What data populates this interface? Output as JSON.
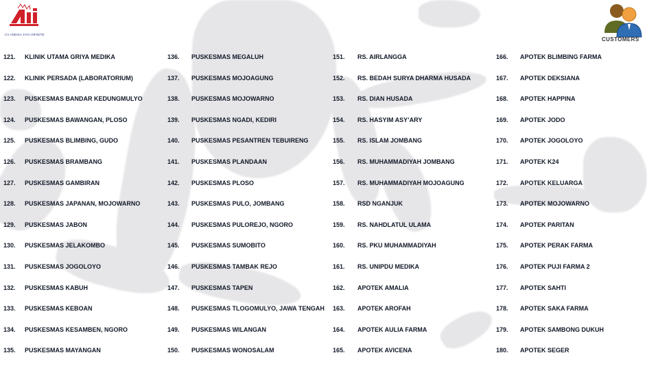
{
  "logo": {
    "brand": "AJI",
    "company": "CV ANDIKA JAYA INFINITE"
  },
  "header": {
    "customers_label": "CUSTOMERS",
    "icon": "customers-icon"
  },
  "columns": [
    {
      "items": [
        {
          "no": "121.",
          "name": "KLINIK UTAMA GRIYA MEDIKA"
        },
        {
          "no": "122.",
          "name": "KLINIK PERSADA (LABORATORIUM)"
        },
        {
          "no": "123.",
          "name": "PUSKESMAS BANDAR KEDUNGMULYO"
        },
        {
          "no": "124.",
          "name": "PUSKESMAS BAWANGAN, PLOSO"
        },
        {
          "no": "125.",
          "name": "PUSKESMAS BLIMBING, GUDO"
        },
        {
          "no": "126.",
          "name": "PUSKESMAS BRAMBANG"
        },
        {
          "no": "127.",
          "name": "PUSKESMAS GAMBIRAN"
        },
        {
          "no": "128.",
          "name": "PUSKESMAS JAPANAN, MOJOWARNO"
        },
        {
          "no": "129.",
          "name": "PUSKESMAS JABON"
        },
        {
          "no": "130.",
          "name": "PUSKESMAS JELAKOMBO"
        },
        {
          "no": "131.",
          "name": "PUSKESMAS JOGOLOYO"
        },
        {
          "no": "132.",
          "name": "PUSKESMAS KABUH"
        },
        {
          "no": "133.",
          "name": "PUSKESMAS KEBOAN"
        },
        {
          "no": "134.",
          "name": "PUSKESMAS KESAMBEN, NGORO"
        },
        {
          "no": "135.",
          "name": "PUSKESMAS MAYANGAN"
        }
      ]
    },
    {
      "items": [
        {
          "no": "136.",
          "name": "PUSKESMAS MEGALUH"
        },
        {
          "no": "137.",
          "name": "PUSKESMAS MOJOAGUNG"
        },
        {
          "no": "138.",
          "name": "PUSKESMAS MOJOWARNO"
        },
        {
          "no": "139.",
          "name": "PUSKESMAS NGADI, KEDIRI"
        },
        {
          "no": "140.",
          "name": "PUSKESMAS PESANTREN TEBUIRENG"
        },
        {
          "no": "141.",
          "name": "PUSKESMAS PLANDAAN"
        },
        {
          "no": "142.",
          "name": "PUSKESMAS PLOSO"
        },
        {
          "no": "143.",
          "name": "PUSKESMAS PULO, JOMBANG"
        },
        {
          "no": "144.",
          "name": "PUSKESMAS PULOREJO, NGORO"
        },
        {
          "no": "145.",
          "name": "PUSKESMAS SUMOBITO"
        },
        {
          "no": "146.",
          "name": "PUSKESMAS TAMBAK REJO"
        },
        {
          "no": "147.",
          "name": "PUSKESMAS TAPEN"
        },
        {
          "no": "148.",
          "name": "PUSKESMAS TLOGOMULYO, JAWA TENGAH"
        },
        {
          "no": "149.",
          "name": "PUSKESMAS WILANGAN"
        },
        {
          "no": "150.",
          "name": "PUSKESMAS WONOSALAM"
        }
      ]
    },
    {
      "items": [
        {
          "no": "151.",
          "name": "RS. AIRLANGGA"
        },
        {
          "no": "152.",
          "name": "RS. BEDAH SURYA DHARMA HUSADA"
        },
        {
          "no": "153.",
          "name": "RS. DIAN HUSADA"
        },
        {
          "no": "154.",
          "name": "RS. HASYIM ASY’ARY"
        },
        {
          "no": "155.",
          "name": "RS. ISLAM JOMBANG"
        },
        {
          "no": "156.",
          "name": "RS. MUHAMMADIYAH JOMBANG"
        },
        {
          "no": "157.",
          "name": "RS. MUHAMMADIYAH MOJOAGUNG"
        },
        {
          "no": "158.",
          "name": "RSD NGANJUK"
        },
        {
          "no": "159.",
          "name": "RS. NAHDLATUL ULAMA"
        },
        {
          "no": "160.",
          "name": "RS. PKU MUHAMMADIYAH"
        },
        {
          "no": "161.",
          "name": "RS. UNIPDU MEDIKA"
        },
        {
          "no": "162.",
          "name": "APOTEK AMALIA"
        },
        {
          "no": "163.",
          "name": "APOTEK AROFAH"
        },
        {
          "no": "164.",
          "name": "APOTEK AULIA FARMA"
        },
        {
          "no": "165.",
          "name": "APOTEK AVICENA"
        }
      ]
    },
    {
      "items": [
        {
          "no": "166.",
          "name": "APOTEK BLIMBING FARMA"
        },
        {
          "no": "167.",
          "name": "APOTEK DEKSIANA"
        },
        {
          "no": "168.",
          "name": "APOTEK HAPPINA"
        },
        {
          "no": "169.",
          "name": "APOTEK JODO"
        },
        {
          "no": "170.",
          "name": "APOTEK JOGOLOYO"
        },
        {
          "no": "171.",
          "name": "APOTEK K24"
        },
        {
          "no": "172.",
          "name": "APOTEK KELUARGA"
        },
        {
          "no": "173.",
          "name": "APOTEK MOJOWARNO"
        },
        {
          "no": "174.",
          "name": "APOTEK PARITAN"
        },
        {
          "no": "175.",
          "name": "APOTEK PERAK FARMA"
        },
        {
          "no": "176.",
          "name": "APOTEK PUJI FARMA 2"
        },
        {
          "no": "177.",
          "name": "APOTEK SAHTI"
        },
        {
          "no": "178.",
          "name": "APOTEK SAKA FARMA"
        },
        {
          "no": "179.",
          "name": "APOTEK SAMBONG DUKUH"
        },
        {
          "no": "180.",
          "name": "APOTEK SEGER"
        }
      ]
    }
  ]
}
